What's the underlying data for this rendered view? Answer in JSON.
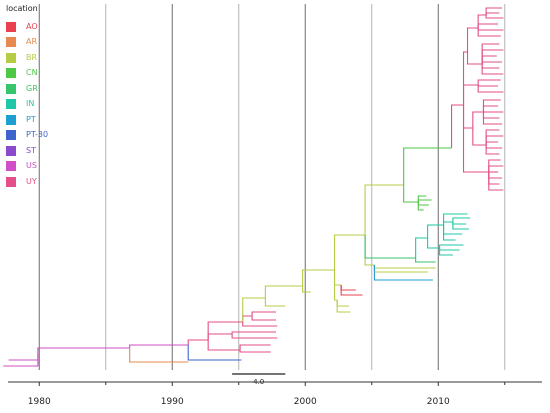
{
  "legend": {
    "title": "location",
    "items": [
      {
        "label": "AO",
        "color": "#e8414f"
      },
      {
        "label": "AR",
        "color": "#e68a50"
      },
      {
        "label": "BR",
        "color": "#b7cc45"
      },
      {
        "label": "CN",
        "color": "#4ec744"
      },
      {
        "label": "GR",
        "color": "#36c46c"
      },
      {
        "label": "IN",
        "color": "#1fc7a6"
      },
      {
        "label": "PT",
        "color": "#1f9ed1"
      },
      {
        "label": "PT-30",
        "color": "#3e63cc"
      },
      {
        "label": "ST",
        "color": "#8b49cc"
      },
      {
        "label": "US",
        "color": "#d04fc5"
      },
      {
        "label": "UY",
        "color": "#e34f88"
      }
    ]
  },
  "axis": {
    "ticks": [
      "1980",
      "1990",
      "2000",
      "2010"
    ],
    "range": [
      1977.5,
      2017.8
    ],
    "minor_ticks": [
      1985,
      1995,
      2005,
      2015
    ]
  },
  "scale_bar": {
    "label": "4.0",
    "length_years": 4.0
  },
  "tree": [
    {
      "name": "root",
      "loc": "US",
      "x": 1979.9,
      "y": 354
    },
    {
      "name": "rootleaf1",
      "loc": "US",
      "x": 1977.7,
      "y": 360,
      "parent": "root"
    },
    {
      "name": "rootleaf2",
      "loc": "US",
      "x": 1977.3,
      "y": 366,
      "parent": "root"
    },
    {
      "name": "n1",
      "loc": "US",
      "x": 1986.8,
      "y": 348,
      "parent": "root"
    },
    {
      "name": "n2",
      "loc": "US",
      "x": 1991.2,
      "y": 345,
      "parent": "n1"
    },
    {
      "name": "aroot",
      "loc": "AR",
      "x": 1991.2,
      "y": 362,
      "parent": "n1"
    },
    {
      "name": "bluebr",
      "loc": "PT-30",
      "x": 1995.2,
      "y": 360,
      "parent": "n2"
    },
    {
      "name": "n3",
      "loc": "UY",
      "x": 1992.7,
      "y": 340,
      "parent": "n2"
    },
    {
      "name": "u1",
      "loc": "UY",
      "x": 1995.1,
      "y": 350,
      "parent": "n3"
    },
    {
      "name": "ul1",
      "loc": "UY",
      "x": 1997.4,
      "y": 345,
      "parent": "u1"
    },
    {
      "name": "ul2",
      "loc": "UY",
      "x": 1997.4,
      "y": 352,
      "parent": "u1"
    },
    {
      "name": "u2",
      "loc": "UY",
      "x": 1994.5,
      "y": 334,
      "parent": "n3"
    },
    {
      "name": "ul3",
      "loc": "UY",
      "x": 1997.8,
      "y": 332,
      "parent": "u2"
    },
    {
      "name": "ul4",
      "loc": "UY",
      "x": 1997.9,
      "y": 338,
      "parent": "u2"
    },
    {
      "name": "n4",
      "loc": "UY",
      "x": 1995.3,
      "y": 322,
      "parent": "n3"
    },
    {
      "name": "u3",
      "loc": "UY",
      "x": 1996.0,
      "y": 316,
      "parent": "n4"
    },
    {
      "name": "ul5",
      "loc": "UY",
      "x": 1997.8,
      "y": 312,
      "parent": "u3"
    },
    {
      "name": "ul6",
      "loc": "UY",
      "x": 1997.8,
      "y": 320,
      "parent": "u3"
    },
    {
      "name": "ul7",
      "loc": "UY",
      "x": 1997.9,
      "y": 326,
      "parent": "n4"
    },
    {
      "name": "n5",
      "loc": "BR",
      "x": 1997.0,
      "y": 298,
      "parent": "n4"
    },
    {
      "name": "bl1",
      "loc": "BR",
      "x": 1998.5,
      "y": 306,
      "parent": "n5"
    },
    {
      "name": "n6",
      "loc": "BR",
      "x": 1999.8,
      "y": 286,
      "parent": "n5"
    },
    {
      "name": "bl2",
      "loc": "BR",
      "x": 2000.4,
      "y": 292,
      "parent": "n6"
    },
    {
      "name": "n7",
      "loc": "BR",
      "x": 2002.2,
      "y": 270,
      "parent": "n6"
    },
    {
      "name": "b1",
      "loc": "BR",
      "x": 2002.4,
      "y": 300,
      "parent": "n7"
    },
    {
      "name": "bl3",
      "loc": "BR",
      "x": 2003.3,
      "y": 306,
      "parent": "b1"
    },
    {
      "name": "bl4",
      "loc": "BR",
      "x": 2003.4,
      "y": 312,
      "parent": "b1"
    },
    {
      "name": "b2",
      "loc": "BR",
      "x": 2002.7,
      "y": 285,
      "parent": "n7"
    },
    {
      "name": "al1",
      "loc": "AO",
      "x": 2003.8,
      "y": 290,
      "parent": "b2"
    },
    {
      "name": "al2",
      "loc": "AO",
      "x": 2004.3,
      "y": 295,
      "parent": "b2"
    },
    {
      "name": "n8",
      "loc": "BR",
      "x": 2004.5,
      "y": 235,
      "parent": "n7"
    },
    {
      "name": "m1",
      "loc": "BR",
      "x": 2005.2,
      "y": 265,
      "parent": "n8"
    },
    {
      "name": "ml1",
      "loc": "BR",
      "x": 2009.8,
      "y": 268,
      "parent": "m1"
    },
    {
      "name": "ml2",
      "loc": "BR",
      "x": 2009.2,
      "y": 272,
      "parent": "m1"
    },
    {
      "name": "pt",
      "loc": "PT",
      "x": 2009.6,
      "y": 280,
      "parent": "m1"
    },
    {
      "name": "g1",
      "loc": "GR",
      "x": 2008.3,
      "y": 258,
      "parent": "n8"
    },
    {
      "name": "gl1",
      "loc": "GR",
      "x": 2009.8,
      "y": 262,
      "parent": "g1"
    },
    {
      "name": "i1",
      "loc": "IN",
      "x": 2009.2,
      "y": 238,
      "parent": "g1"
    },
    {
      "name": "i2",
      "loc": "IN",
      "x": 2010.1,
      "y": 248,
      "parent": "i1"
    },
    {
      "name": "il1",
      "loc": "IN",
      "x": 2011.1,
      "y": 255,
      "parent": "i2"
    },
    {
      "name": "il2",
      "loc": "IN",
      "x": 2011.6,
      "y": 250,
      "parent": "i2"
    },
    {
      "name": "il3",
      "loc": "IN",
      "x": 2011.9,
      "y": 245,
      "parent": "i2"
    },
    {
      "name": "i3",
      "loc": "IN",
      "x": 2010.4,
      "y": 225,
      "parent": "i1"
    },
    {
      "name": "il4",
      "loc": "IN",
      "x": 2011.3,
      "y": 240,
      "parent": "i3"
    },
    {
      "name": "il5",
      "loc": "IN",
      "x": 2011.8,
      "y": 234,
      "parent": "i3"
    },
    {
      "name": "i4",
      "loc": "IN",
      "x": 2011.1,
      "y": 222,
      "parent": "i3"
    },
    {
      "name": "il6",
      "loc": "IN",
      "x": 2012.3,
      "y": 229,
      "parent": "i4"
    },
    {
      "name": "il7",
      "loc": "IN",
      "x": 2012.1,
      "y": 224,
      "parent": "i4"
    },
    {
      "name": "il8",
      "loc": "IN",
      "x": 2012.4,
      "y": 218,
      "parent": "i4"
    },
    {
      "name": "il9",
      "loc": "IN",
      "x": 2012.2,
      "y": 214,
      "parent": "i3"
    },
    {
      "name": "n9",
      "loc": "BR",
      "x": 2007.4,
      "y": 185,
      "parent": "n8"
    },
    {
      "name": "c1",
      "loc": "CN",
      "x": 2008.5,
      "y": 202,
      "parent": "n9"
    },
    {
      "name": "cl1",
      "loc": "CN",
      "x": 2009.1,
      "y": 196,
      "parent": "c1"
    },
    {
      "name": "cl2",
      "loc": "CN",
      "x": 2009.5,
      "y": 200,
      "parent": "c1"
    },
    {
      "name": "cl3",
      "loc": "CN",
      "x": 2009.3,
      "y": 205,
      "parent": "c1"
    },
    {
      "name": "cl4",
      "loc": "CN",
      "x": 2008.9,
      "y": 210,
      "parent": "c1"
    },
    {
      "name": "n10",
      "loc": "CN",
      "x": 2011.0,
      "y": 148,
      "parent": "n9"
    },
    {
      "name": "r1",
      "loc": "UY",
      "x": 2011.9,
      "y": 105,
      "parent": "n10"
    },
    {
      "name": "r1a",
      "loc": "UY",
      "x": 2012.2,
      "y": 52,
      "parent": "r1"
    },
    {
      "name": "r1b",
      "loc": "UY",
      "x": 2013.0,
      "y": 28,
      "parent": "r1a"
    },
    {
      "name": "r1c",
      "loc": "UY",
      "x": 2013.6,
      "y": 15,
      "parent": "r1b"
    },
    {
      "name": "t1",
      "loc": "UY",
      "x": 2014.8,
      "y": 8,
      "parent": "r1c"
    },
    {
      "name": "t2",
      "loc": "UY",
      "x": 2014.6,
      "y": 13,
      "parent": "r1c"
    },
    {
      "name": "t3",
      "loc": "UY",
      "x": 2014.9,
      "y": 18,
      "parent": "r1c"
    },
    {
      "name": "t4",
      "loc": "UY",
      "x": 2014.5,
      "y": 24,
      "parent": "r1b"
    },
    {
      "name": "t5",
      "loc": "UY",
      "x": 2014.9,
      "y": 30,
      "parent": "r1b"
    },
    {
      "name": "t6",
      "loc": "UY",
      "x": 2014.7,
      "y": 36,
      "parent": "r1b"
    },
    {
      "name": "r1d",
      "loc": "UY",
      "x": 2013.3,
      "y": 64,
      "parent": "r1a"
    },
    {
      "name": "t7",
      "loc": "UY",
      "x": 2014.6,
      "y": 44,
      "parent": "r1d"
    },
    {
      "name": "t8",
      "loc": "UY",
      "x": 2014.9,
      "y": 50,
      "parent": "r1d"
    },
    {
      "name": "t9",
      "loc": "UY",
      "x": 2014.4,
      "y": 56,
      "parent": "r1d"
    },
    {
      "name": "t10",
      "loc": "UY",
      "x": 2014.8,
      "y": 62,
      "parent": "r1d"
    },
    {
      "name": "t11",
      "loc": "UY",
      "x": 2014.6,
      "y": 68,
      "parent": "r1d"
    },
    {
      "name": "t12",
      "loc": "UY",
      "x": 2014.9,
      "y": 74,
      "parent": "r1d"
    },
    {
      "name": "r1e",
      "loc": "UY",
      "x": 2013.0,
      "y": 85,
      "parent": "r1"
    },
    {
      "name": "t13",
      "loc": "UY",
      "x": 2014.7,
      "y": 80,
      "parent": "r1e"
    },
    {
      "name": "t14",
      "loc": "UY",
      "x": 2014.5,
      "y": 86,
      "parent": "r1e"
    },
    {
      "name": "t15",
      "loc": "UY",
      "x": 2014.9,
      "y": 92,
      "parent": "r1e"
    },
    {
      "name": "r1f",
      "loc": "UY",
      "x": 2012.6,
      "y": 128,
      "parent": "r1"
    },
    {
      "name": "r1g",
      "loc": "UY",
      "x": 2013.4,
      "y": 112,
      "parent": "r1f"
    },
    {
      "name": "t16",
      "loc": "UY",
      "x": 2014.7,
      "y": 100,
      "parent": "r1g"
    },
    {
      "name": "t17",
      "loc": "UY",
      "x": 2014.5,
      "y": 106,
      "parent": "r1g"
    },
    {
      "name": "t18",
      "loc": "UY",
      "x": 2014.9,
      "y": 112,
      "parent": "r1g"
    },
    {
      "name": "t19",
      "loc": "UY",
      "x": 2014.6,
      "y": 118,
      "parent": "r1g"
    },
    {
      "name": "t20",
      "loc": "UY",
      "x": 2014.8,
      "y": 124,
      "parent": "r1g"
    },
    {
      "name": "r1h",
      "loc": "UY",
      "x": 2013.6,
      "y": 145,
      "parent": "r1f"
    },
    {
      "name": "t21",
      "loc": "UY",
      "x": 2014.6,
      "y": 130,
      "parent": "r1h"
    },
    {
      "name": "t22",
      "loc": "UY",
      "x": 2014.9,
      "y": 136,
      "parent": "r1h"
    },
    {
      "name": "t23",
      "loc": "UY",
      "x": 2014.5,
      "y": 142,
      "parent": "r1h"
    },
    {
      "name": "t24",
      "loc": "UY",
      "x": 2014.8,
      "y": 148,
      "parent": "r1h"
    },
    {
      "name": "t25",
      "loc": "UY",
      "x": 2014.6,
      "y": 154,
      "parent": "r1h"
    },
    {
      "name": "r1i",
      "loc": "UY",
      "x": 2013.8,
      "y": 172,
      "parent": "r1"
    },
    {
      "name": "t26",
      "loc": "UY",
      "x": 2014.7,
      "y": 160,
      "parent": "r1i"
    },
    {
      "name": "t27",
      "loc": "UY",
      "x": 2014.9,
      "y": 166,
      "parent": "r1i"
    },
    {
      "name": "t28",
      "loc": "UY",
      "x": 2014.5,
      "y": 172,
      "parent": "r1i"
    },
    {
      "name": "t29",
      "loc": "UY",
      "x": 2014.8,
      "y": 178,
      "parent": "r1i"
    },
    {
      "name": "t30",
      "loc": "UY",
      "x": 2014.6,
      "y": 184,
      "parent": "r1i"
    },
    {
      "name": "t31",
      "loc": "UY",
      "x": 2014.9,
      "y": 190,
      "parent": "r1i"
    }
  ]
}
